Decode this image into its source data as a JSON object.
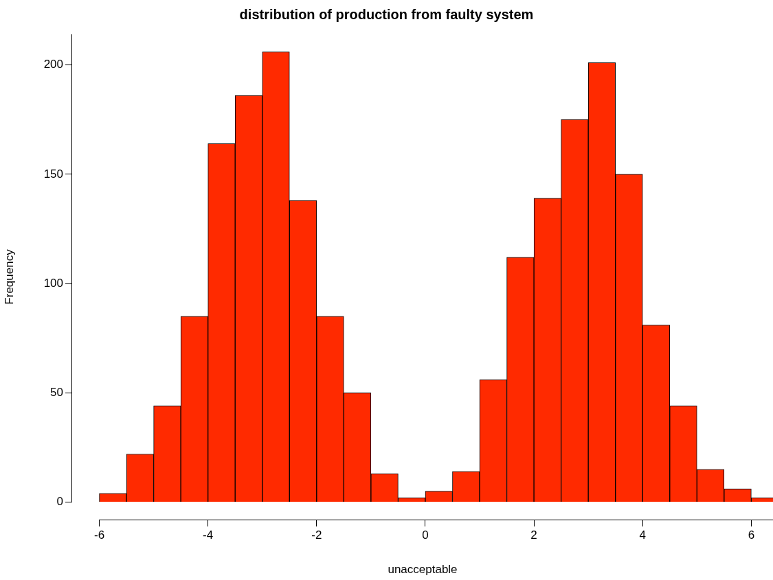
{
  "chart_data": {
    "type": "histogram",
    "title": "distribution of production from faulty system",
    "xlabel": "unacceptable",
    "ylabel": "Frequency",
    "bins": [
      -6,
      -5.5,
      -5,
      -4.5,
      -4,
      -3.5,
      -3,
      -2.5,
      -2,
      -1.5,
      -1,
      -0.5,
      0,
      0.5,
      1,
      1.5,
      2,
      2.5,
      3,
      3.5,
      4,
      4.5,
      5,
      5.5,
      6,
      6.5
    ],
    "values": [
      4,
      22,
      44,
      85,
      164,
      186,
      206,
      138,
      85,
      50,
      13,
      2,
      5,
      14,
      56,
      112,
      139,
      175,
      201,
      150,
      81,
      44,
      15,
      6,
      2
    ],
    "color": "#ff2a00",
    "xlim": [
      -6.5,
      6.4
    ],
    "xticks": [
      -6,
      -4,
      -2,
      0,
      2,
      4,
      6
    ],
    "ylim": [
      -8,
      214
    ],
    "yticks": [
      0,
      50,
      100,
      150,
      200
    ],
    "grid": false,
    "legend": false
  }
}
